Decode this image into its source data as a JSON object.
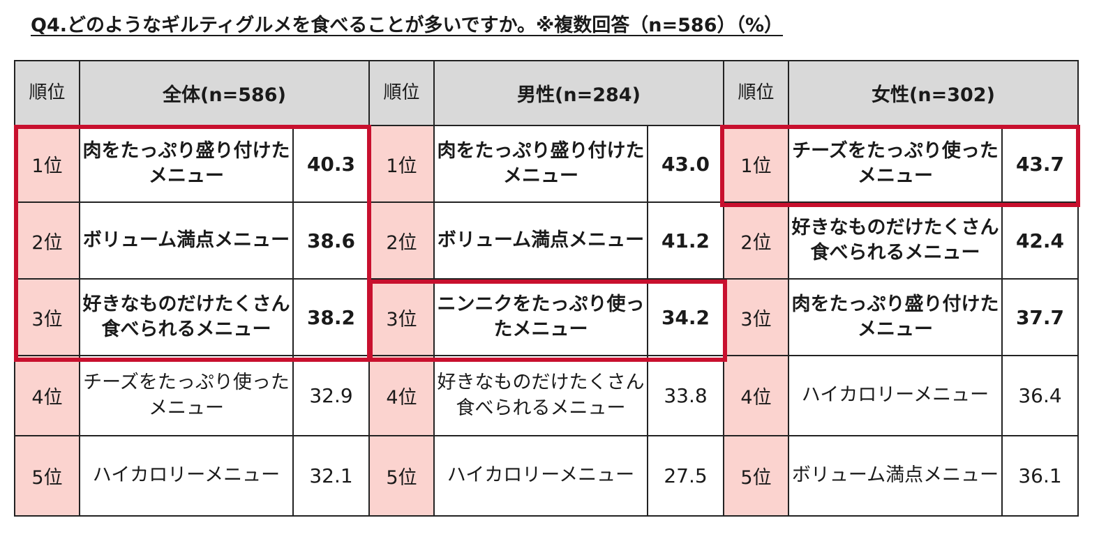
{
  "title": "Q4.どのようなギルティグルメを食べることが多いですか。※複数回答（n=586）（%）",
  "colors": {
    "highlight": "#c8102e",
    "rank_cell": "#fbd3cf",
    "header_bg": "#d9d9d9"
  },
  "chart_data": {
    "type": "table",
    "groups": [
      {
        "rank_header": "順位",
        "header": "全体(n=586)",
        "rows": [
          {
            "rank": "1位",
            "item": "肉をたっぷり盛り付けたメニュー",
            "value": "40.3"
          },
          {
            "rank": "2位",
            "item": "ボリューム満点メニュー",
            "value": "38.6"
          },
          {
            "rank": "3位",
            "item": "好きなものだけたくさん食べられるメニュー",
            "value": "38.2"
          },
          {
            "rank": "4位",
            "item": "チーズをたっぷり使ったメニュー",
            "value": "32.9"
          },
          {
            "rank": "5位",
            "item": "ハイカロリーメニュー",
            "value": "32.1"
          }
        ]
      },
      {
        "rank_header": "順位",
        "header": "男性(n=284)",
        "rows": [
          {
            "rank": "1位",
            "item": "肉をたっぷり盛り付けたメニュー",
            "value": "43.0"
          },
          {
            "rank": "2位",
            "item": "ボリューム満点メニュー",
            "value": "41.2"
          },
          {
            "rank": "3位",
            "item": "ニンニクをたっぷり使ったメニュー",
            "value": "34.2"
          },
          {
            "rank": "4位",
            "item": "好きなものだけたくさん食べられるメニュー",
            "value": "33.8"
          },
          {
            "rank": "5位",
            "item": "ハイカロリーメニュー",
            "value": "27.5"
          }
        ]
      },
      {
        "rank_header": "順位",
        "header": "女性(n=302)",
        "rows": [
          {
            "rank": "1位",
            "item": "チーズをたっぷり使ったメニュー",
            "value": "43.7"
          },
          {
            "rank": "2位",
            "item": "好きなものだけたくさん食べられるメニュー",
            "value": "42.4"
          },
          {
            "rank": "3位",
            "item": "肉をたっぷり盛り付けたメニュー",
            "value": "37.7"
          },
          {
            "rank": "4位",
            "item": "ハイカロリーメニュー",
            "value": "36.4"
          },
          {
            "rank": "5位",
            "item": "ボリューム満点メニュー",
            "value": "36.1"
          }
        ]
      }
    ]
  }
}
